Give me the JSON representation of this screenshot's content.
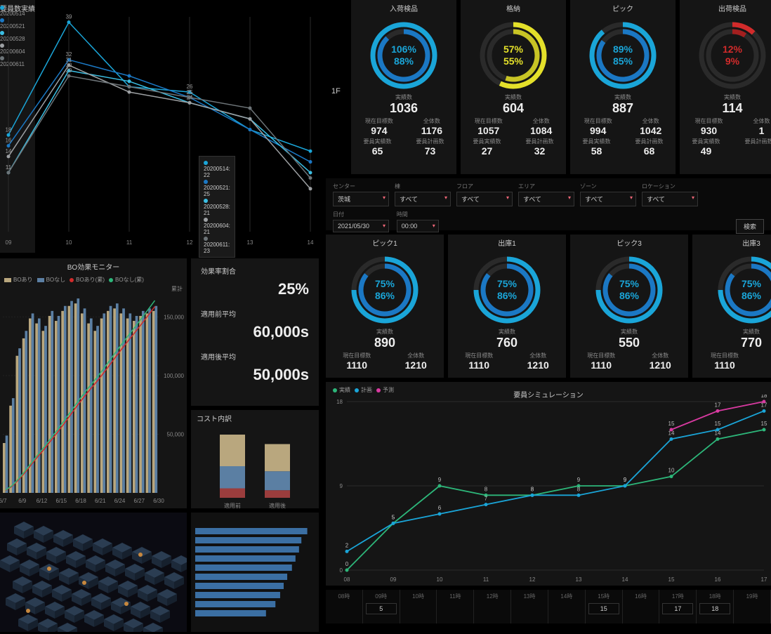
{
  "colors": {
    "bg": "#000000",
    "panel": "#151515",
    "text": "#cccccc",
    "muted": "#888888",
    "cyan": "#1aa5d8",
    "cyan2": "#3bbfe4",
    "blue": "#1b78c4",
    "yellow": "#e4e02a",
    "red": "#d22b2b",
    "tan": "#b9a77e",
    "steelblue": "#5b7fa3",
    "brick": "#9b3d3d",
    "pink": "#d93aa1",
    "green": "#2db77a",
    "orange": "#c7883e",
    "grey": "#9da0a3"
  },
  "line_chart": {
    "title": "要員数実績",
    "x_labels": [
      "09",
      "10",
      "11",
      "12",
      "13",
      "14"
    ],
    "series": [
      {
        "name": "20200514",
        "color": "#1aa5d8",
        "points": [
          18,
          39,
          27,
          26,
          19,
          15
        ]
      },
      {
        "name": "20200521",
        "color": "#1b78c4",
        "points": [
          16,
          32,
          29,
          25,
          19,
          13
        ]
      },
      {
        "name": "20200528",
        "color": "#3bbfe4",
        "points": [
          11,
          30,
          28,
          24,
          21,
          11
        ]
      },
      {
        "name": "20200604",
        "color": "#9da0a3",
        "points": [
          14,
          31,
          26,
          24,
          21,
          8
        ]
      },
      {
        "name": "20200611",
        "color": "#6d7478",
        "points": [
          11,
          29,
          27,
          25,
          23,
          10
        ]
      }
    ],
    "tooltip": {
      "lines": [
        {
          "color": "#1aa5d8",
          "text": "20200514: 22"
        },
        {
          "color": "#1b78c4",
          "text": "20200521: 25"
        },
        {
          "color": "#3bbfe4",
          "text": "20200528: 21"
        },
        {
          "color": "#9da0a3",
          "text": "20200604: 21"
        },
        {
          "color": "#6d7478",
          "text": "20200611: 23"
        }
      ]
    },
    "ylim": [
      0,
      40
    ]
  },
  "floor_label": "1F",
  "gauges_top": [
    {
      "title": "入荷検品",
      "outer_pct": 106,
      "inner_pct": 88,
      "outer_color": "#1aa5d8",
      "inner_color": "#1b78c4",
      "text_color": "#1aa5d8",
      "actual_label": "実績数",
      "actual": 1036,
      "target_label": "現在目標数",
      "target": 974,
      "total_label": "全体数",
      "total": 1176,
      "h_actual_label": "要員実績数",
      "h_actual": 65,
      "h_plan_label": "要員計画数",
      "h_plan": 73
    },
    {
      "title": "格納",
      "outer_pct": 57,
      "inner_pct": 55,
      "outer_color": "#e4e02a",
      "inner_color": "#c8c425",
      "text_color": "#e4e02a",
      "actual_label": "実績数",
      "actual": 604,
      "target_label": "現在目標数",
      "target": 1057,
      "total_label": "全体数",
      "total": 1084,
      "h_actual_label": "要員実績数",
      "h_actual": 27,
      "h_plan_label": "要員計画数",
      "h_plan": 32
    },
    {
      "title": "ピック",
      "outer_pct": 89,
      "inner_pct": 85,
      "outer_color": "#1aa5d8",
      "inner_color": "#1b78c4",
      "text_color": "#1aa5d8",
      "actual_label": "実績数",
      "actual": 887,
      "target_label": "現在目標数",
      "target": 994,
      "total_label": "全体数",
      "total": 1042,
      "h_actual_label": "要員実績数",
      "h_actual": 58,
      "h_plan_label": "要員計画数",
      "h_plan": 68
    },
    {
      "title": "出荷検品",
      "outer_pct": 12,
      "inner_pct": 9,
      "outer_color": "#d22b2b",
      "inner_color": "#a31f1f",
      "text_color": "#d22b2b",
      "actual_label": "実績数",
      "actual": 114,
      "target_label": "現在目標数",
      "target": 930,
      "total_label": "全体数",
      "total": 1,
      "h_actual_label": "要員実績数",
      "h_actual": 49,
      "h_plan_label": "要員計画数",
      "h_plan": ""
    }
  ],
  "filters": {
    "items": [
      {
        "label": "センター",
        "value": "茨城"
      },
      {
        "label": "棟",
        "value": "すべて"
      },
      {
        "label": "フロア",
        "value": "すべて"
      },
      {
        "label": "エリア",
        "value": "すべて"
      },
      {
        "label": "ゾーン",
        "value": "すべて"
      },
      {
        "label": "ロケーション",
        "value": "すべて"
      }
    ],
    "date_label": "日付",
    "date": "2021/05/30",
    "time_label": "時間",
    "time": "00:00",
    "search": "検索"
  },
  "gauges_mid": [
    {
      "title": "ピック1",
      "outer_pct": 75,
      "inner_pct": 86,
      "actual": 890,
      "target": 1110,
      "total": 1210
    },
    {
      "title": "出庫1",
      "outer_pct": 75,
      "inner_pct": 86,
      "actual": 760,
      "target": 1110,
      "total": 1210
    },
    {
      "title": "ピック3",
      "outer_pct": 75,
      "inner_pct": 86,
      "actual": 550,
      "target": 1110,
      "total": 1210
    },
    {
      "title": "出庫3",
      "outer_pct": 75,
      "inner_pct": 86,
      "actual": 770,
      "target": 1110,
      "total": 1
    }
  ],
  "mid_labels": {
    "actual": "実績数",
    "target": "現在目標数",
    "total": "全体数"
  },
  "bo_monitor": {
    "title": "BO効果モニター",
    "legend": [
      {
        "label": "BOあり",
        "type": "sq",
        "color": "#b9a77e"
      },
      {
        "label": "BOなし",
        "type": "sq",
        "color": "#5b7fa3"
      },
      {
        "label": "BOあり(累)",
        "type": "dot",
        "color": "#d22b2b"
      },
      {
        "label": "BOなし(累)",
        "type": "dot",
        "color": "#2db77a"
      }
    ],
    "cum_label": "累計",
    "x_labels": [
      "6/7",
      "6/9",
      "6/12",
      "6/15",
      "6/18",
      "6/21",
      "6/24",
      "6/27",
      "6/30"
    ],
    "y_right": [
      "150,000",
      "100,000",
      "50,000"
    ],
    "bars_a": [
      2000,
      3500,
      5500,
      6200,
      7000,
      6800,
      6500,
      7100,
      6900,
      7300,
      7500,
      7600,
      7200,
      6800,
      6500,
      7000,
      7300,
      7400,
      7200,
      7000,
      6900,
      7100,
      7200,
      7300
    ],
    "bars_b": [
      2300,
      3800,
      5800,
      6500,
      7200,
      7000,
      6700,
      7300,
      7100,
      7500,
      7700,
      7800,
      7400,
      7000,
      6700,
      7200,
      7500,
      7600,
      7400,
      7200,
      7100,
      7300,
      7400,
      7500
    ],
    "line_a": [
      2000,
      5500,
      11000,
      17200,
      24200,
      31000,
      37500,
      44600,
      51500,
      58800,
      66300,
      73900,
      81100,
      87900,
      94400,
      101400,
      108700,
      116100,
      123300,
      130300,
      137200,
      144300,
      151500,
      158800
    ],
    "line_b": [
      2300,
      6100,
      11900,
      18400,
      25600,
      32600,
      39300,
      46600,
      53700,
      61200,
      68900,
      76700,
      84100,
      91100,
      97800,
      105000,
      112500,
      120100,
      127500,
      134700,
      141800,
      149100,
      156500,
      164000
    ]
  },
  "kpis": {
    "rate_label": "効果率割合",
    "rate": "25%",
    "before_label": "適用前平均",
    "before": "60,000s",
    "after_label": "適用後平均",
    "after": "50,000s"
  },
  "cost": {
    "title": "コスト内訳",
    "x_labels": [
      "適用前",
      "適用後"
    ],
    "stacks": [
      [
        {
          "c": "#9b3d3d",
          "v": 15
        },
        {
          "c": "#5b7fa3",
          "v": 35
        },
        {
          "c": "#b9a77e",
          "v": 50
        }
      ],
      [
        {
          "c": "#9b3d3d",
          "v": 12
        },
        {
          "c": "#5b7fa3",
          "v": 30
        },
        {
          "c": "#b9a77e",
          "v": 43
        }
      ]
    ]
  },
  "simulation": {
    "title": "要員シミュレーション",
    "legend": [
      {
        "label": "実績",
        "color": "#2db77a"
      },
      {
        "label": "計画",
        "color": "#1aa5d8"
      },
      {
        "label": "予測",
        "color": "#d93aa1"
      }
    ],
    "x_labels": [
      "08",
      "09",
      "10",
      "11",
      "12",
      "13",
      "14",
      "15",
      "16",
      "17"
    ],
    "ylim": [
      0,
      18
    ],
    "yticks": [
      0,
      9,
      18
    ],
    "series": {
      "actual": [
        0,
        5,
        9,
        8,
        8,
        9,
        9,
        10,
        14,
        15
      ],
      "plan": [
        2,
        5,
        6,
        7,
        8,
        8,
        9,
        14,
        15,
        17
      ],
      "forecast": [
        null,
        null,
        null,
        null,
        null,
        null,
        null,
        15,
        17,
        18
      ]
    }
  },
  "timeline": {
    "hours": [
      "08時",
      "09時",
      "10時",
      "11時",
      "12時",
      "13時",
      "14時",
      "15時",
      "16時",
      "17時",
      "18時",
      "19時"
    ],
    "vals": [
      "",
      "5",
      "",
      "",
      "",
      "",
      "",
      "15",
      "",
      "17",
      "18",
      ""
    ]
  },
  "hbar": {
    "values": [
      95,
      90,
      88,
      85,
      82,
      78,
      75,
      72,
      68,
      60
    ]
  }
}
